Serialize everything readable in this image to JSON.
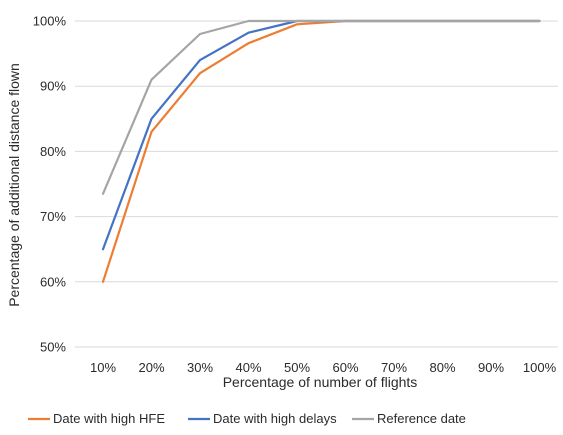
{
  "chart_data": {
    "type": "line",
    "title": "",
    "xlabel": "Percentage of number of flights",
    "ylabel": "Percentage of additional distance flown",
    "categories": [
      "10%",
      "20%",
      "30%",
      "40%",
      "50%",
      "60%",
      "70%",
      "80%",
      "90%",
      "100%"
    ],
    "ylim": [
      50,
      100
    ],
    "y_ticks": [
      "50%",
      "60%",
      "70%",
      "80%",
      "90%",
      "100%"
    ],
    "y_tick_values": [
      50,
      60,
      70,
      80,
      90,
      100
    ],
    "grid": true,
    "legend_position": "bottom",
    "series": [
      {
        "name": "Date with high HFE",
        "color": "#ED7D31",
        "values": [
          60,
          83,
          92,
          96.6,
          99.5,
          100,
          100,
          100,
          100,
          100
        ]
      },
      {
        "name": "Date with high delays",
        "color": "#4472C4",
        "values": [
          65,
          85,
          94,
          98.2,
          100,
          100,
          100,
          100,
          100,
          100
        ]
      },
      {
        "name": "Reference date",
        "color": "#A5A5A5",
        "values": [
          73.5,
          91,
          98,
          100,
          100,
          100,
          100,
          100,
          100,
          100
        ]
      }
    ]
  }
}
